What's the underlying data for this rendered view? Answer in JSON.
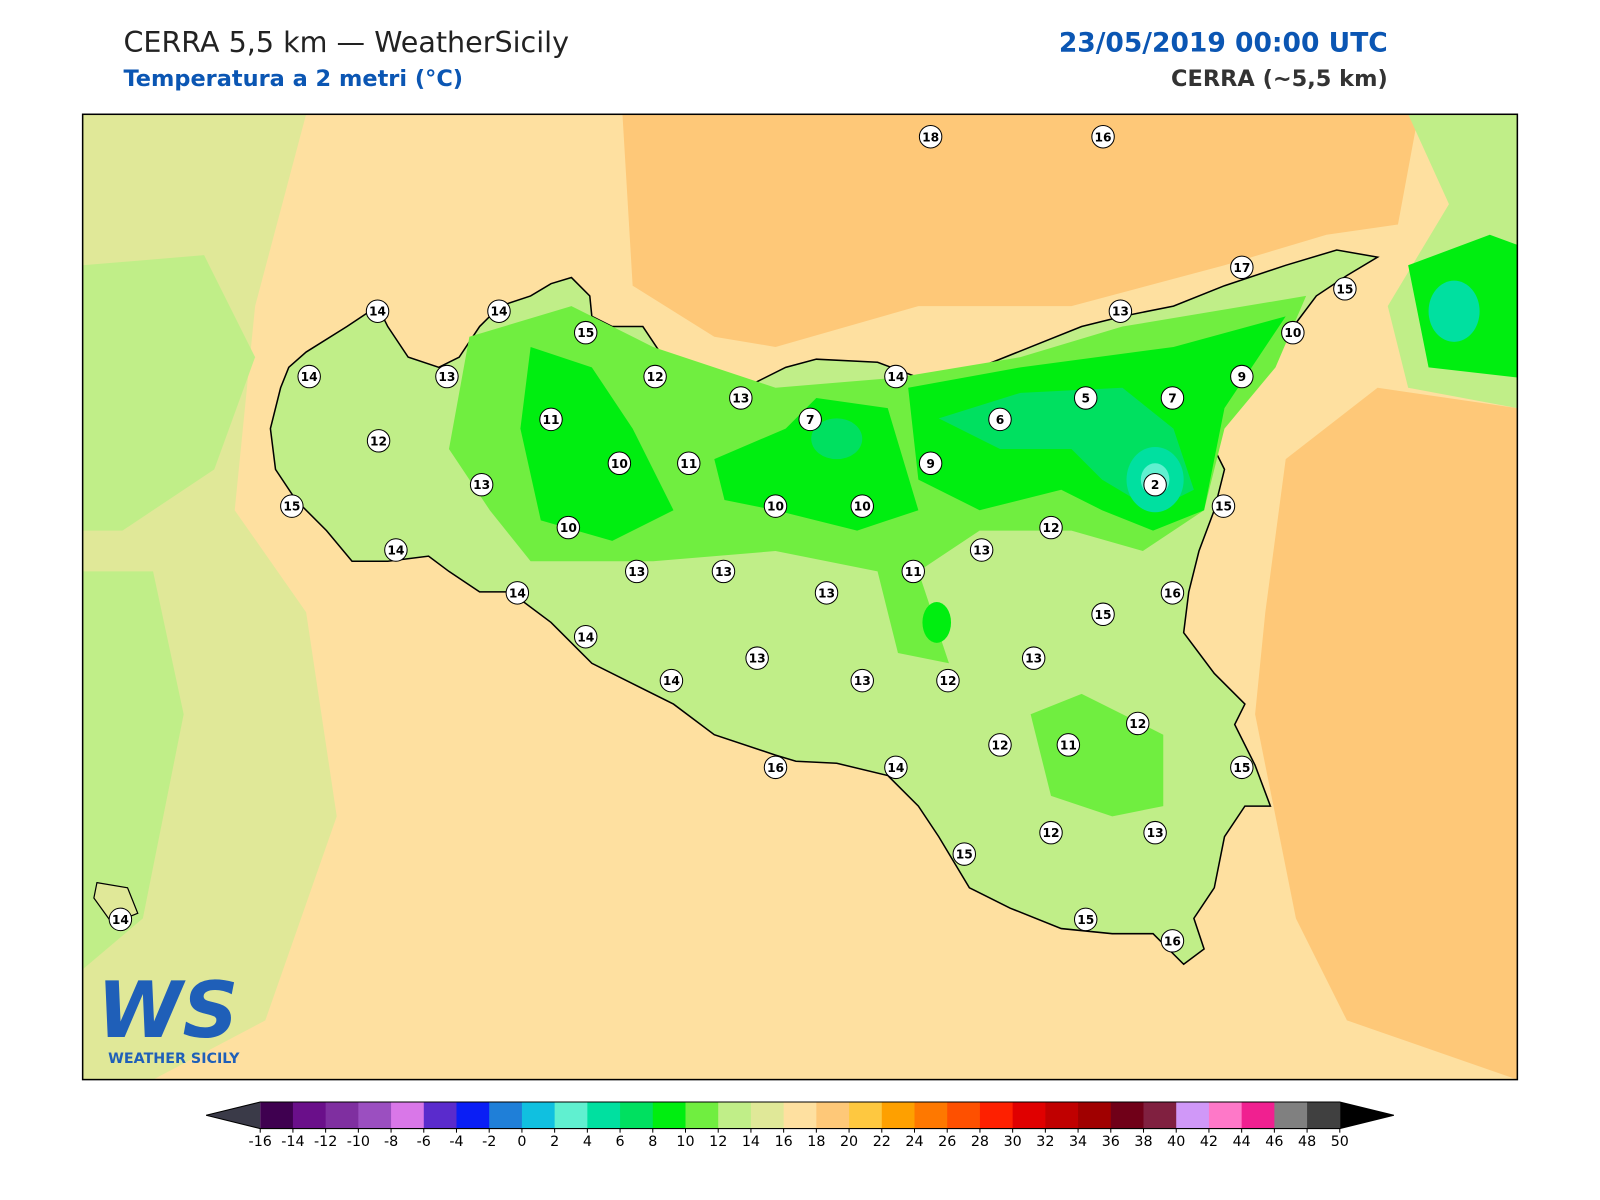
{
  "header": {
    "title": "CERRA 5,5 km — WeatherSicily",
    "subtitle": "Temperatura a 2 metri (°C)",
    "date": "23/05/2019 00:00 UTC",
    "source": "CERRA (~5,5 km)"
  },
  "logo": {
    "mark": "WS",
    "name": "WEATHER SICILY"
  },
  "stations": [
    18,
    16,
    17,
    15,
    14,
    14,
    15,
    13,
    10,
    14,
    13,
    12,
    13,
    14,
    9,
    5,
    7,
    7,
    6,
    11,
    12,
    10,
    11,
    9,
    2,
    13,
    15,
    10,
    10,
    15,
    10,
    12,
    14,
    13,
    13,
    13,
    11,
    14,
    13,
    16,
    15,
    14,
    13,
    13,
    14,
    13,
    12,
    12,
    12,
    11,
    16,
    14,
    15,
    12,
    13,
    15,
    15,
    16,
    14
  ],
  "colorbar": {
    "ticks": [
      -16,
      -14,
      -12,
      -10,
      -8,
      -6,
      -4,
      -2,
      0,
      2,
      4,
      6,
      8,
      10,
      12,
      14,
      16,
      18,
      20,
      22,
      24,
      26,
      28,
      30,
      32,
      34,
      36,
      38,
      40,
      42,
      44,
      46,
      48,
      50
    ],
    "colors": [
      "#3f0050",
      "#6a0f8a",
      "#7f2fa0",
      "#9b4fc0",
      "#d977e8",
      "#5a2bcc",
      "#0a1ef5",
      "#1f7fd8",
      "#10c0e0",
      "#60f0d0",
      "#00e0a0",
      "#00e060",
      "#00ee10",
      "#70ee40",
      "#c0ee88",
      "#e0e898",
      "#fee0a0",
      "#fec878",
      "#fec840",
      "#fea000",
      "#fe7800",
      "#fe5000",
      "#fe2000",
      "#e00000",
      "#c00000",
      "#a00000",
      "#700018",
      "#802040",
      "#d098f8",
      "#fe78c8",
      "#f02090",
      "#808080",
      "#404040"
    ],
    "under": "#3a3a48",
    "over": "#000000"
  }
}
